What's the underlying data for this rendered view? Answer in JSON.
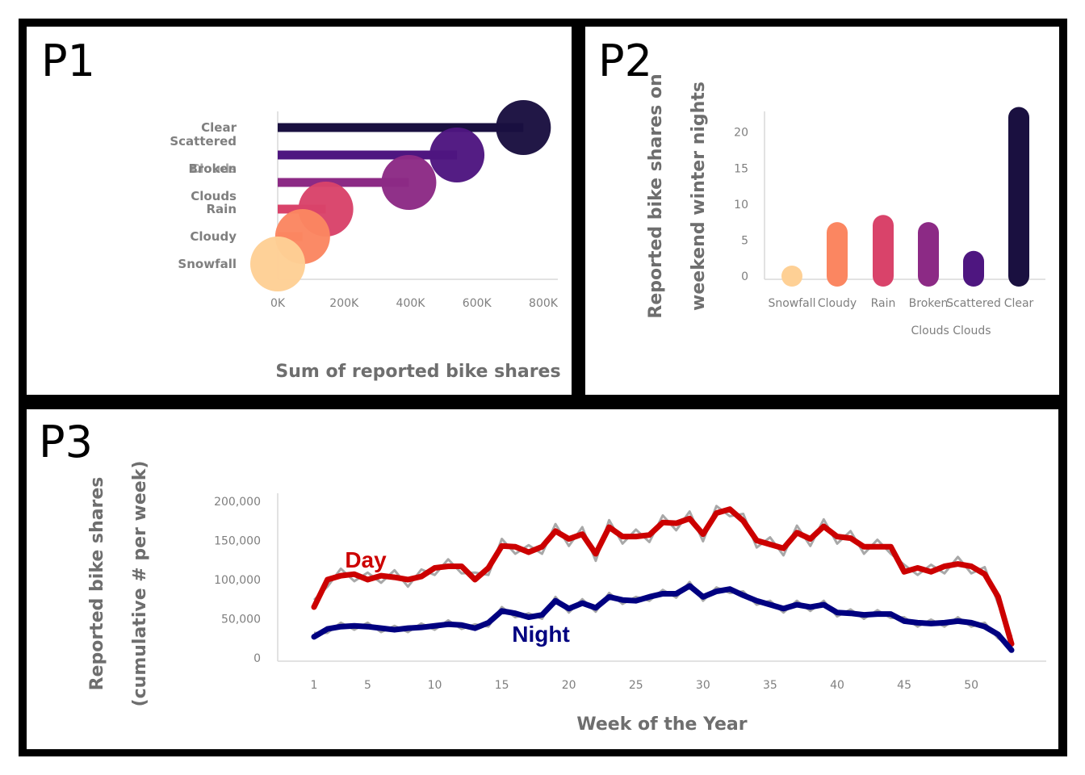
{
  "panels": {
    "p1": "P1",
    "p2": "P2",
    "p3": "P3"
  },
  "chart_data": [
    {
      "id": "p1",
      "type": "lollipop",
      "categories": [
        "Clear",
        "Scattered Clouds",
        "Broken Clouds",
        "Rain",
        "Cloudy",
        "Snowfall"
      ],
      "category_labels": [
        "Clear",
        "Scattered",
        "Broken",
        "Clouds",
        "Rain",
        "Cloudy",
        "Snowfall"
      ],
      "overlap_label": "Clouds",
      "values": [
        740000,
        540000,
        395000,
        145000,
        75000,
        0
      ],
      "colors": [
        "#1a1040",
        "#4e1680",
        "#8c2a85",
        "#d9436a",
        "#fb8661",
        "#fed095"
      ],
      "xlabel": "Sum of reported bike shares",
      "xlim": [
        0,
        800000
      ],
      "xticks": [
        "0K",
        "200K",
        "400K",
        "600K",
        "800K"
      ]
    },
    {
      "id": "p2",
      "type": "bar",
      "categories": [
        "Snowfall",
        "Cloudy",
        "Rain",
        "Broken Clouds",
        "Scattered Clouds",
        "Clear"
      ],
      "tick_labels": [
        "Snowfall",
        "Cloudy",
        "Rain",
        "Broken",
        "Scattered",
        "Clear"
      ],
      "tick_labels_line2": "Clouds Clouds",
      "values": [
        1,
        7.5,
        8.5,
        7.5,
        3.5,
        23.5
      ],
      "colors": [
        "#fed095",
        "#fb8661",
        "#d9436a",
        "#8c2a85",
        "#4e1680",
        "#1a1040"
      ],
      "ylabel_line1": "Reported bike shares on",
      "ylabel_line2": "weekend winter nights",
      "ylim": [
        0,
        24
      ],
      "yticks": [
        "0",
        "5",
        "10",
        "15",
        "20"
      ]
    },
    {
      "id": "p3",
      "type": "line",
      "xlabel": "Week of the Year",
      "ylabel_line1": "Reported bike shares",
      "ylabel_line2": "(cumulative # per week)",
      "xlim": [
        1,
        53
      ],
      "ylim": [
        0,
        200000
      ],
      "xticks": [
        "1",
        "5",
        "10",
        "15",
        "20",
        "25",
        "30",
        "35",
        "40",
        "45",
        "50"
      ],
      "yticks": [
        "0",
        "50,000",
        "100,000",
        "150,000",
        "200,000"
      ],
      "series": [
        {
          "name": "Day",
          "color": "#cc0000",
          "x": [
            1,
            2,
            3,
            4,
            5,
            6,
            7,
            8,
            9,
            10,
            11,
            12,
            13,
            14,
            15,
            16,
            17,
            18,
            19,
            20,
            21,
            22,
            23,
            24,
            25,
            26,
            27,
            28,
            29,
            30,
            31,
            32,
            33,
            34,
            35,
            36,
            37,
            38,
            39,
            40,
            41,
            42,
            43,
            44,
            45,
            46,
            47,
            48,
            49,
            50,
            51,
            52,
            53
          ],
          "values": [
            65000,
            100000,
            105000,
            107000,
            100000,
            105000,
            103000,
            100000,
            104000,
            115000,
            117000,
            117000,
            100000,
            115000,
            143000,
            142000,
            135000,
            142000,
            162000,
            152000,
            158000,
            133000,
            167000,
            155000,
            155000,
            157000,
            173000,
            172000,
            178000,
            158000,
            185000,
            190000,
            175000,
            150000,
            145000,
            140000,
            160000,
            152000,
            168000,
            155000,
            153000,
            142000,
            142000,
            142000,
            110000,
            115000,
            110000,
            117000,
            120000,
            117000,
            107000,
            78000,
            18000
          ]
        },
        {
          "name": "Night",
          "color": "#000080",
          "x": [
            1,
            2,
            3,
            4,
            5,
            6,
            7,
            8,
            9,
            10,
            11,
            12,
            13,
            14,
            15,
            16,
            17,
            18,
            19,
            20,
            21,
            22,
            23,
            24,
            25,
            26,
            27,
            28,
            29,
            30,
            31,
            32,
            33,
            34,
            35,
            36,
            37,
            38,
            39,
            40,
            41,
            42,
            43,
            44,
            45,
            46,
            47,
            48,
            49,
            50,
            51,
            52,
            53
          ],
          "values": [
            27000,
            37000,
            40000,
            41000,
            40000,
            38000,
            36000,
            38000,
            39000,
            41000,
            43000,
            42000,
            38000,
            45000,
            60000,
            57000,
            52000,
            55000,
            73000,
            63000,
            70000,
            64000,
            78000,
            74000,
            73000,
            78000,
            82000,
            82000,
            92000,
            78000,
            85000,
            88000,
            80000,
            73000,
            68000,
            63000,
            68000,
            65000,
            68000,
            58000,
            57000,
            55000,
            56000,
            56000,
            47000,
            45000,
            44000,
            45000,
            47000,
            45000,
            40000,
            30000,
            10000
          ]
        }
      ]
    }
  ]
}
